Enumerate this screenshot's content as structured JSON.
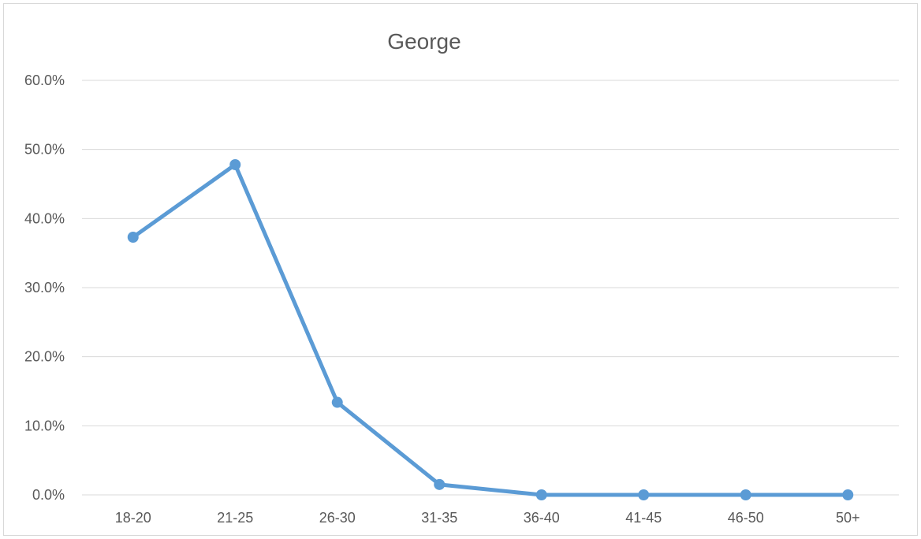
{
  "chart_data": {
    "type": "line",
    "title": "George",
    "xlabel": "",
    "ylabel": "",
    "categories": [
      "18-20",
      "21-25",
      "26-30",
      "31-35",
      "36-40",
      "41-45",
      "46-50",
      "50+"
    ],
    "series": [
      {
        "values": [
          37.3,
          47.8,
          13.4,
          1.5,
          0.0,
          0.0,
          0.0,
          0.0
        ]
      }
    ],
    "ylim": [
      0,
      60
    ],
    "yticks": [
      "0.0%",
      "10.0%",
      "20.0%",
      "30.0%",
      "40.0%",
      "50.0%",
      "60.0%"
    ],
    "grid": true,
    "legend": "none",
    "color": "#5b9bd5"
  }
}
